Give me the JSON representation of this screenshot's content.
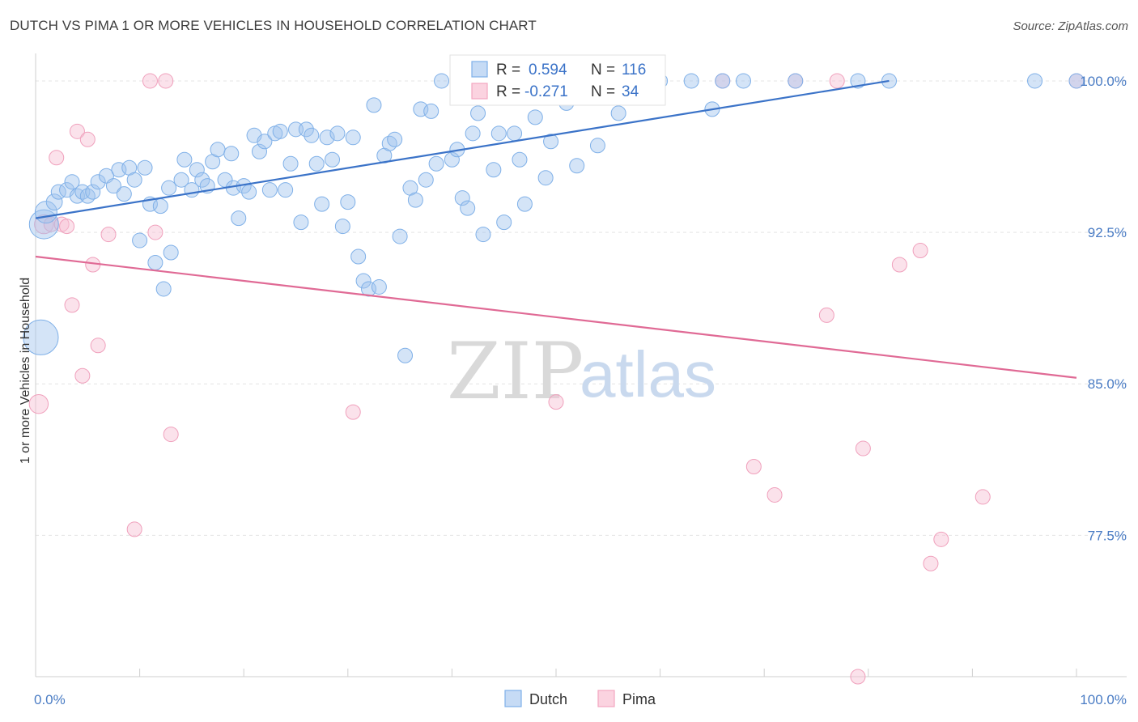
{
  "header": {
    "title": "DUTCH VS PIMA 1 OR MORE VEHICLES IN HOUSEHOLD CORRELATION CHART",
    "source": "Source: ZipAtlas.com"
  },
  "watermark": {
    "zip": "ZIP",
    "atlas": "atlas"
  },
  "colors": {
    "dutch": "#7fb0e8",
    "dutch_line": "#3b73c8",
    "pima": "#f4a6c0",
    "pima_line": "#e06a95",
    "axis_text": "#4a7cc4"
  },
  "chart_data": {
    "type": "scatter",
    "title": "DUTCH VS PIMA 1 OR MORE VEHICLES IN HOUSEHOLD CORRELATION CHART",
    "xlabel": "",
    "ylabel": "1 or more Vehicles in Household",
    "xlim": [
      0,
      100
    ],
    "ylim": [
      70.5,
      101.2
    ],
    "y_ticks": [
      {
        "value": 100.0,
        "label": "100.0%"
      },
      {
        "value": 92.5,
        "label": "92.5%"
      },
      {
        "value": 85.0,
        "label": "85.0%"
      },
      {
        "value": 77.5,
        "label": "77.5%"
      }
    ],
    "x_ticks": [
      {
        "value": 0,
        "label": "0.0%"
      },
      {
        "value": 100,
        "label": "100.0%"
      }
    ],
    "grid": true,
    "legend_position": "bottom-center",
    "stats": [
      {
        "series": "Dutch",
        "r_label": "R =",
        "r": "0.594",
        "n_label": "N =",
        "n": "116"
      },
      {
        "series": "Pima",
        "r_label": "R =",
        "r": "-0.271",
        "n_label": "N =",
        "n": "34"
      }
    ],
    "series": [
      {
        "name": "Dutch",
        "trend": {
          "x": [
            0,
            82
          ],
          "y": [
            93.2,
            100.0
          ]
        },
        "points": [
          [
            0.5,
            87.3,
            2.4
          ],
          [
            0.8,
            92.9,
            2.0
          ],
          [
            1,
            93.5,
            1.5
          ],
          [
            1.8,
            94,
            1.1
          ],
          [
            2.2,
            94.5,
            1
          ],
          [
            3,
            94.6,
            1
          ],
          [
            3.5,
            95,
            1
          ],
          [
            4,
            94.3,
            1
          ],
          [
            4.5,
            94.5,
            1
          ],
          [
            5,
            94.3,
            1
          ],
          [
            5.5,
            94.5,
            1
          ],
          [
            6,
            95,
            1
          ],
          [
            6.8,
            95.3,
            1
          ],
          [
            7.5,
            94.8,
            1
          ],
          [
            8,
            95.6,
            1
          ],
          [
            8.5,
            94.4,
            1
          ],
          [
            9,
            95.7,
            1
          ],
          [
            9.5,
            95.1,
            1
          ],
          [
            10,
            92.1,
            1
          ],
          [
            10.5,
            95.7,
            1
          ],
          [
            11,
            93.9,
            1
          ],
          [
            11.5,
            91.0,
            1
          ],
          [
            12,
            93.8,
            1
          ],
          [
            12.3,
            89.7,
            1
          ],
          [
            12.8,
            94.7,
            1
          ],
          [
            13,
            91.5,
            1
          ],
          [
            14,
            95.1,
            1
          ],
          [
            14.3,
            96.1,
            1
          ],
          [
            15,
            94.6,
            1
          ],
          [
            15.5,
            95.6,
            1
          ],
          [
            16,
            95.1,
            1
          ],
          [
            16.5,
            94.8,
            1
          ],
          [
            17,
            96.0,
            1
          ],
          [
            17.5,
            96.6,
            1
          ],
          [
            18.2,
            95.1,
            1
          ],
          [
            18.8,
            96.4,
            1
          ],
          [
            19,
            94.7,
            1
          ],
          [
            19.5,
            93.2,
            1
          ],
          [
            20,
            94.8,
            1
          ],
          [
            20.5,
            94.5,
            1
          ],
          [
            21,
            97.3,
            1
          ],
          [
            21.5,
            96.5,
            1
          ],
          [
            22,
            97.0,
            1
          ],
          [
            22.5,
            94.6,
            1
          ],
          [
            23,
            97.4,
            1
          ],
          [
            23.5,
            97.5,
            1
          ],
          [
            24,
            94.6,
            1
          ],
          [
            24.5,
            95.9,
            1
          ],
          [
            25,
            97.6,
            1
          ],
          [
            25.5,
            93.0,
            1
          ],
          [
            26,
            97.6,
            1
          ],
          [
            26.5,
            97.3,
            1
          ],
          [
            27,
            95.9,
            1
          ],
          [
            27.5,
            93.9,
            1
          ],
          [
            28,
            97.2,
            1
          ],
          [
            28.5,
            96.1,
            1
          ],
          [
            29,
            97.4,
            1
          ],
          [
            29.5,
            92.8,
            1
          ],
          [
            30,
            94.0,
            1
          ],
          [
            30.5,
            97.2,
            1
          ],
          [
            31,
            91.3,
            1
          ],
          [
            31.5,
            90.1,
            1
          ],
          [
            32,
            89.7,
            1
          ],
          [
            32.5,
            98.8,
            1
          ],
          [
            33,
            89.8,
            1
          ],
          [
            33.5,
            96.3,
            1
          ],
          [
            34,
            96.9,
            1
          ],
          [
            34.5,
            97.1,
            1
          ],
          [
            35,
            92.3,
            1
          ],
          [
            35.5,
            86.4,
            1
          ],
          [
            36,
            94.7,
            1
          ],
          [
            36.5,
            94.1,
            1
          ],
          [
            37,
            98.6,
            1
          ],
          [
            37.5,
            95.1,
            1
          ],
          [
            38,
            98.5,
            1
          ],
          [
            38.5,
            95.9,
            1
          ],
          [
            39,
            100,
            1
          ],
          [
            40,
            96.1,
            1
          ],
          [
            40.5,
            96.6,
            1
          ],
          [
            41,
            94.2,
            1
          ],
          [
            41.5,
            93.7,
            1
          ],
          [
            42,
            97.4,
            1
          ],
          [
            42.5,
            98.4,
            1
          ],
          [
            43,
            92.4,
            1
          ],
          [
            43.5,
            100,
            1
          ],
          [
            44,
            95.6,
            1
          ],
          [
            44.5,
            97.4,
            1
          ],
          [
            45,
            93.0,
            1
          ],
          [
            45.5,
            100,
            1
          ],
          [
            46,
            97.4,
            1
          ],
          [
            46.5,
            96.1,
            1
          ],
          [
            47,
            93.9,
            1
          ],
          [
            47.5,
            100,
            1
          ],
          [
            48,
            98.2,
            1
          ],
          [
            48.5,
            100,
            1
          ],
          [
            49,
            95.2,
            1
          ],
          [
            49.5,
            97.0,
            1
          ],
          [
            50,
            100,
            1
          ],
          [
            51,
            98.9,
            1
          ],
          [
            52,
            95.8,
            1
          ],
          [
            53,
            100,
            1
          ],
          [
            54,
            96.8,
            1
          ],
          [
            55,
            100,
            1
          ],
          [
            56,
            98.4,
            1
          ],
          [
            57,
            100,
            1
          ],
          [
            58,
            100,
            1
          ],
          [
            60,
            100,
            1
          ],
          [
            63,
            100,
            1
          ],
          [
            65,
            98.6,
            1
          ],
          [
            66,
            100,
            1
          ],
          [
            68,
            100,
            1
          ],
          [
            73,
            100,
            1
          ],
          [
            79,
            100,
            1
          ],
          [
            82,
            100,
            1
          ],
          [
            96,
            100,
            1
          ],
          [
            100,
            100,
            1
          ]
        ]
      },
      {
        "name": "Pima",
        "trend": {
          "x": [
            0,
            100
          ],
          "y": [
            91.3,
            85.3
          ]
        },
        "points": [
          [
            0.3,
            84.0,
            1.3
          ],
          [
            0.8,
            92.9,
            1.3
          ],
          [
            1.5,
            92.9,
            1
          ],
          [
            2,
            96.2,
            1
          ],
          [
            2.5,
            92.9,
            1
          ],
          [
            3,
            92.8,
            1
          ],
          [
            3.5,
            88.9,
            1
          ],
          [
            4,
            97.5,
            1
          ],
          [
            4.5,
            85.4,
            1
          ],
          [
            5,
            97.1,
            1
          ],
          [
            5.5,
            90.9,
            1
          ],
          [
            6,
            86.9,
            1
          ],
          [
            7,
            92.4,
            1
          ],
          [
            9.5,
            77.8,
            1
          ],
          [
            11,
            100,
            1
          ],
          [
            11.5,
            92.5,
            1
          ],
          [
            12.5,
            100,
            1
          ],
          [
            13,
            82.5,
            1
          ],
          [
            30.5,
            83.6,
            1
          ],
          [
            50,
            84.1,
            1
          ],
          [
            66,
            100,
            1
          ],
          [
            69,
            80.9,
            1
          ],
          [
            71,
            79.5,
            1
          ],
          [
            73,
            100,
            1
          ],
          [
            76,
            88.4,
            1
          ],
          [
            77,
            100,
            1
          ],
          [
            79,
            70.5,
            1
          ],
          [
            79.5,
            81.8,
            1
          ],
          [
            83,
            90.9,
            1
          ],
          [
            85,
            91.6,
            1
          ],
          [
            86,
            76.1,
            1
          ],
          [
            87,
            77.3,
            1
          ],
          [
            91,
            79.4,
            1
          ],
          [
            100,
            100,
            1
          ]
        ]
      }
    ]
  }
}
